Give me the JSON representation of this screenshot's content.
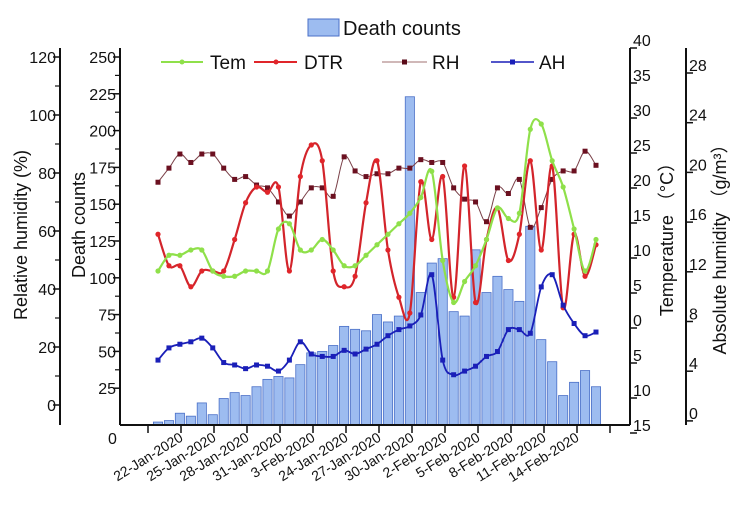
{
  "chart_data": {
    "type": "bar",
    "title": "",
    "legend": {
      "placement": "top-center",
      "entries": [
        {
          "name": "Death counts",
          "kind": "bar",
          "color": "#9dbcf0"
        },
        {
          "name": "Tem",
          "kind": "line",
          "color": "#8fe04a"
        },
        {
          "name": "DTR",
          "kind": "line",
          "color": "#e0252a"
        },
        {
          "name": "RH",
          "kind": "line",
          "color": "#6b1020"
        },
        {
          "name": "AH",
          "kind": "line",
          "color": "#1a1fb8"
        }
      ]
    },
    "x_tick_labels": [
      "22-Jan-2020",
      "25-Jan-2020",
      "28-Jan-2020",
      "31-Jan-2020",
      "3-Feb-2020",
      "24-Jan-2020",
      "27-Jan-2020",
      "30-Jan-2020",
      "2-Feb-2020",
      "5-Feb-2020",
      "8-Feb-2020",
      "11-Feb-2020",
      "14-Feb-2020"
    ],
    "x_origin_label": "0",
    "axes": {
      "relative_humidity": {
        "label": "Relative humidity (%)",
        "ticks": [
          "120",
          "100",
          "80",
          "60",
          "40",
          "20",
          "0"
        ],
        "range": [
          -8,
          120
        ]
      },
      "death_counts": {
        "label": "Death counts",
        "ticks": [
          "250",
          "225",
          "200",
          "175",
          "150",
          "125",
          "100",
          "75",
          "50",
          "25"
        ],
        "range": [
          0,
          250
        ]
      },
      "temperature": {
        "label": "Temperature （°C）",
        "ticks": [
          "40",
          "35",
          "30",
          "25",
          "20",
          "15",
          "10",
          "5",
          "0",
          "5",
          "10",
          "15"
        ],
        "range": [
          -15,
          40
        ]
      },
      "absolute_humidity": {
        "label": "Absolute humidity （g/m³）",
        "ticks": [
          "28",
          "24",
          "20",
          "16",
          "12",
          "8",
          "4",
          "0"
        ],
        "range": [
          0,
          30
        ]
      }
    },
    "series": [
      {
        "name": "Death counts",
        "axis": "death_counts",
        "values": [
          2,
          3,
          8,
          6,
          15,
          7,
          18,
          22,
          20,
          26,
          31,
          33,
          32,
          41,
          49,
          50,
          54,
          67,
          65,
          64,
          75,
          70,
          74,
          223,
          90,
          110,
          113,
          77,
          74,
          119,
          90,
          101,
          92,
          84,
          135,
          58,
          43,
          20,
          29,
          37,
          26
        ]
      },
      {
        "name": "RH",
        "axis": "relative_humidity",
        "values": [
          79,
          84,
          89,
          86,
          89,
          89,
          84,
          80,
          81,
          78,
          77,
          72,
          67,
          72,
          77,
          77,
          74,
          88,
          83,
          81,
          82,
          82,
          84,
          84,
          87,
          86,
          86,
          77,
          73,
          72,
          65,
          77,
          75,
          80,
          63,
          70,
          80,
          83,
          83,
          90,
          85
        ]
      },
      {
        "name": "DTR",
        "axis": "temperature",
        "values": [
          7.5,
          4.5,
          4.5,
          2.5,
          4,
          4,
          4,
          7,
          10.5,
          12,
          11.5,
          12,
          4,
          13,
          16,
          14.5,
          4,
          2.5,
          3.5,
          10.5,
          14.5,
          6,
          1.5,
          0,
          12.5,
          7,
          13,
          1.5,
          14,
          1,
          7,
          10,
          5,
          7.5,
          14.5,
          6,
          14,
          0.5,
          7.5,
          3.5,
          6.5
        ]
      },
      {
        "name": "Tem",
        "axis": "temperature",
        "values": [
          4,
          5.5,
          5.5,
          6,
          6,
          4,
          3.5,
          3.5,
          4,
          4,
          4,
          8,
          8.5,
          6,
          6,
          7,
          6,
          4.5,
          4.5,
          5.5,
          6.5,
          7.5,
          8.5,
          9.5,
          11,
          13.5,
          5,
          1,
          3,
          4.5,
          7,
          10,
          9,
          9.5,
          17.5,
          18,
          14.5,
          12,
          8,
          4,
          7
        ]
      },
      {
        "name": "AH",
        "axis": "absolute_humidity",
        "values": [
          4.5,
          5.5,
          5.8,
          6,
          6.3,
          5.5,
          4.3,
          4.1,
          3.8,
          4.1,
          4,
          3.6,
          4.5,
          6,
          5,
          4.8,
          4.8,
          5.3,
          5,
          5.4,
          5.8,
          6.5,
          7,
          7.3,
          8.2,
          11.5,
          4.5,
          3.3,
          3.6,
          4,
          4.8,
          5.2,
          7,
          7,
          6.7,
          10.5,
          11.5,
          9,
          7.5,
          6.5,
          6.8
        ]
      }
    ]
  }
}
